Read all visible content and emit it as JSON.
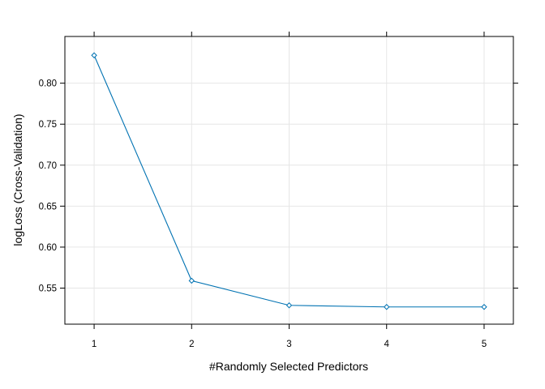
{
  "chart_data": {
    "type": "line",
    "title": "",
    "xlabel": "#Randomly Selected Predictors",
    "ylabel": "logLoss (Cross-Validation)",
    "x": [
      1,
      2,
      3,
      4,
      5
    ],
    "series": [
      {
        "values": [
          0.834,
          0.559,
          0.529,
          0.527,
          0.527
        ]
      }
    ],
    "xlim": [
      0.7,
      5.3
    ],
    "ylim": [
      0.506,
      0.857
    ],
    "xticks": [
      1,
      2,
      3,
      4,
      5
    ],
    "yticks": [
      0.55,
      0.6,
      0.65,
      0.7,
      0.75,
      0.8
    ],
    "ytick_labels": [
      "0.55",
      "0.60",
      "0.65",
      "0.70",
      "0.75",
      "0.80"
    ],
    "grid": true,
    "marker": "open-diamond",
    "line_color": "#0072b2",
    "grid_color": "#e6e6e6",
    "frame_color": "#000000"
  }
}
